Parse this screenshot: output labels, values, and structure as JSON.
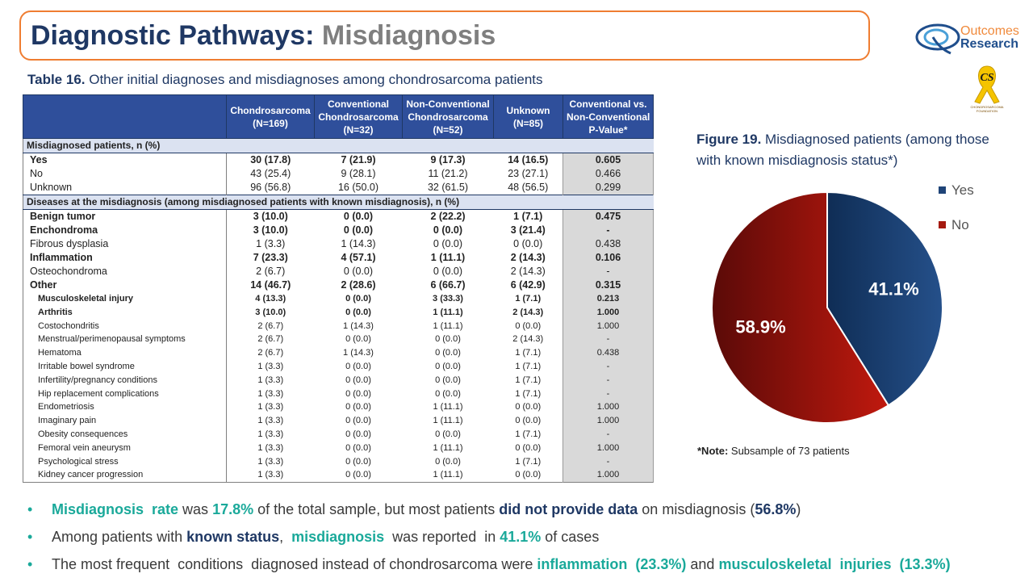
{
  "title": {
    "main": "Diagnostic Pathways:",
    "sub": "Misdiagnosis"
  },
  "logo": {
    "line1": "Outcomes",
    "line2": "Research",
    "emblem_letters": "CS",
    "emblem_line1": "CHONDROSARCOMA",
    "emblem_line2": "FOUNDATION",
    "colors": {
      "outcomes": "#f08a3c",
      "research": "#1f4e8c",
      "ribbon": "#f5c400"
    }
  },
  "table": {
    "caption_label": "Table 16.",
    "caption_text": " Other initial diagnoses and misdiagnoses among chondrosarcoma patients",
    "headers": [
      {
        "l1": "Chondrosarcoma",
        "l2": "(N=169)",
        "l3": ""
      },
      {
        "l1": "Conventional",
        "l2": "Chondrosarcoma",
        "l3": "(N=32)"
      },
      {
        "l1": "Non-Conventional",
        "l2": "Chondrosarcoma",
        "l3": "(N=52)"
      },
      {
        "l1": "Unknown",
        "l2": "(N=85)",
        "l3": ""
      },
      {
        "l1": "Conventional vs.",
        "l2": "Non-Conventional",
        "l3": "P-Value*"
      }
    ],
    "rows": [
      {
        "type": "section",
        "label": "Misdiagnosed patients, n (%)"
      },
      {
        "type": "bold",
        "label": "Yes",
        "v": [
          "30 (17.8)",
          "7 (21.9)",
          "9 (17.3)",
          "14 (16.5)"
        ],
        "p": "0.605"
      },
      {
        "type": "lvl",
        "label": "No",
        "v": [
          "43 (25.4)",
          "9 (28.1)",
          "11 (21.2)",
          "23 (27.1)"
        ],
        "p": "0.466"
      },
      {
        "type": "lvl",
        "label": "Unknown",
        "v": [
          "96 (56.8)",
          "16 (50.0)",
          "32 (61.5)",
          "48 (56.5)"
        ],
        "p": "0.299"
      },
      {
        "type": "section",
        "label": "Diseases at the misdiagnosis (among misdiagnosed patients with known misdiagnosis), n (%)"
      },
      {
        "type": "bold",
        "label": "Benign tumor",
        "v": [
          "3 (10.0)",
          "0 (0.0)",
          "2 (22.2)",
          "1 (7.1)"
        ],
        "p": "0.475"
      },
      {
        "type": "bold",
        "label": "Enchondroma",
        "v": [
          "3 (10.0)",
          "0 (0.0)",
          "0 (0.0)",
          "3 (21.4)"
        ],
        "p": "-"
      },
      {
        "type": "lvl",
        "label": "Fibrous dysplasia",
        "v": [
          "1 (3.3)",
          "1 (14.3)",
          "0 (0.0)",
          "0 (0.0)"
        ],
        "p": "0.438"
      },
      {
        "type": "bold",
        "label": "Inflammation",
        "v": [
          "7 (23.3)",
          "4 (57.1)",
          "1 (11.1)",
          "2 (14.3)"
        ],
        "p": "0.106"
      },
      {
        "type": "lvl",
        "label": "Osteochondroma",
        "v": [
          "2 (6.7)",
          "0 (0.0)",
          "0 (0.0)",
          "2 (14.3)"
        ],
        "p": "-"
      },
      {
        "type": "bold",
        "label": "Other",
        "v": [
          "14 (46.7)",
          "2 (28.6)",
          "6 (66.7)",
          "6 (42.9)"
        ],
        "p": "0.315"
      },
      {
        "type": "subbold",
        "label": "Musculoskeletal  injury",
        "v": [
          "4 (13.3)",
          "0 (0.0)",
          "3 (33.3)",
          "1 (7.1)"
        ],
        "p": "0.213"
      },
      {
        "type": "subbold",
        "label": "Arthritis",
        "v": [
          "3 (10.0)",
          "0 (0.0)",
          "1 (11.1)",
          "2 (14.3)"
        ],
        "p": "1.000"
      },
      {
        "type": "sub",
        "label": "Costochondritis",
        "v": [
          "2 (6.7)",
          "1 (14.3)",
          "1 (11.1)",
          "0 (0.0)"
        ],
        "p": "1.000"
      },
      {
        "type": "sub",
        "label": "Menstrual/perimenopausal symptoms",
        "v": [
          "2 (6.7)",
          "0 (0.0)",
          "0 (0.0)",
          "2 (14.3)"
        ],
        "p": "-"
      },
      {
        "type": "sub",
        "label": "Hematoma",
        "v": [
          "2 (6.7)",
          "1 (14.3)",
          "0 (0.0)",
          "1 (7.1)"
        ],
        "p": "0.438"
      },
      {
        "type": "sub",
        "label": "Irritable bowel syndrome",
        "v": [
          "1 (3.3)",
          "0 (0.0)",
          "0 (0.0)",
          "1 (7.1)"
        ],
        "p": "-"
      },
      {
        "type": "sub",
        "label": "Infertility/pregnancy conditions",
        "v": [
          "1 (3.3)",
          "0 (0.0)",
          "0 (0.0)",
          "1 (7.1)"
        ],
        "p": "-"
      },
      {
        "type": "sub",
        "label": "Hip replacement complications",
        "v": [
          "1 (3.3)",
          "0 (0.0)",
          "0 (0.0)",
          "1 (7.1)"
        ],
        "p": "-"
      },
      {
        "type": "sub",
        "label": "Endometriosis",
        "v": [
          "1 (3.3)",
          "0 (0.0)",
          "1 (11.1)",
          "0 (0.0)"
        ],
        "p": "1.000"
      },
      {
        "type": "sub",
        "label": "Imaginary pain",
        "v": [
          "1 (3.3)",
          "0 (0.0)",
          "1 (11.1)",
          "0 (0.0)"
        ],
        "p": "1.000"
      },
      {
        "type": "sub",
        "label": "Obesity consequences",
        "v": [
          "1 (3.3)",
          "0 (0.0)",
          "0 (0.0)",
          "1 (7.1)"
        ],
        "p": "-"
      },
      {
        "type": "sub",
        "label": "Femoral vein aneurysm",
        "v": [
          "1 (3.3)",
          "0 (0.0)",
          "1 (11.1)",
          "0 (0.0)"
        ],
        "p": "1.000"
      },
      {
        "type": "sub",
        "label": "Psychological stress",
        "v": [
          "1 (3.3)",
          "0 (0.0)",
          "0 (0.0)",
          "1 (7.1)"
        ],
        "p": "-"
      },
      {
        "type": "sub",
        "label": "Kidney cancer progression",
        "v": [
          "1 (3.3)",
          "0 (0.0)",
          "1 (11.1)",
          "0 (0.0)"
        ],
        "p": "1.000"
      }
    ]
  },
  "figure": {
    "caption_label": "Figure 19.",
    "caption_text": " Misdiagnosed patients (among those with known misdiagnosis status*)"
  },
  "chart_data": {
    "type": "pie",
    "categories": [
      "Yes",
      "No"
    ],
    "values": [
      41.1,
      58.9
    ],
    "labels": [
      "41.1%",
      "58.9%"
    ],
    "colors": [
      "#1f4478",
      "#a51a10"
    ],
    "legend": "top-right"
  },
  "note": {
    "label": "*Note:",
    "text": " Subsample of 73 patients"
  },
  "bullets": [
    [
      {
        "t": "Misdiagnosis  rate",
        "s": "teal"
      },
      {
        "t": " was ",
        "s": ""
      },
      {
        "t": "17.8%",
        "s": "teal"
      },
      {
        "t": " of the total sample, but most patients ",
        "s": ""
      },
      {
        "t": "did not provide data",
        "s": "navy"
      },
      {
        "t": " on misdiagnosis (",
        "s": ""
      },
      {
        "t": "56.8%",
        "s": "navy"
      },
      {
        "t": ")",
        "s": ""
      }
    ],
    [
      {
        "t": "Among patients with ",
        "s": ""
      },
      {
        "t": "known status",
        "s": "navy"
      },
      {
        "t": ",  ",
        "s": ""
      },
      {
        "t": "misdiagnosis",
        "s": "teal"
      },
      {
        "t": "  was reported  in ",
        "s": ""
      },
      {
        "t": "41.1%",
        "s": "teal"
      },
      {
        "t": " of cases",
        "s": ""
      }
    ],
    [
      {
        "t": "The most frequent  conditions  diagnosed instead of chondrosarcoma were ",
        "s": ""
      },
      {
        "t": "inflammation  (23.3%)",
        "s": "teal"
      },
      {
        "t": " and ",
        "s": ""
      },
      {
        "t": "musculoskeletal  injuries  (13.3%)",
        "s": "teal"
      }
    ]
  ]
}
